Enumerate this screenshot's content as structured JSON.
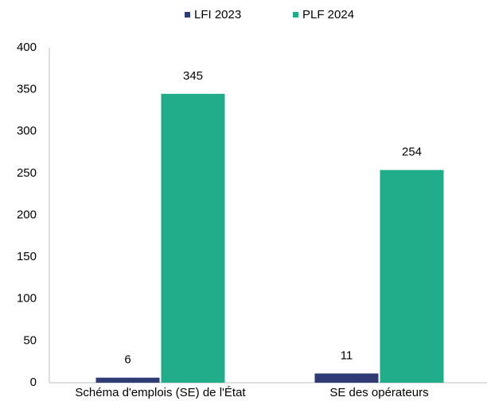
{
  "chart_data": {
    "type": "bar",
    "categories": [
      "Schéma d'emplois (SE) de l'État",
      "SE des opérateurs"
    ],
    "series": [
      {
        "name": "LFI 2023",
        "color": "#2e3b75",
        "values": [
          6,
          11
        ]
      },
      {
        "name": "PLF 2024",
        "color": "#22ad8a",
        "values": [
          345,
          254
        ]
      }
    ],
    "ylim": [
      0,
      400
    ],
    "yticks": [
      0,
      50,
      100,
      150,
      200,
      250,
      300,
      350,
      400
    ],
    "grid": false,
    "legend": "top"
  }
}
